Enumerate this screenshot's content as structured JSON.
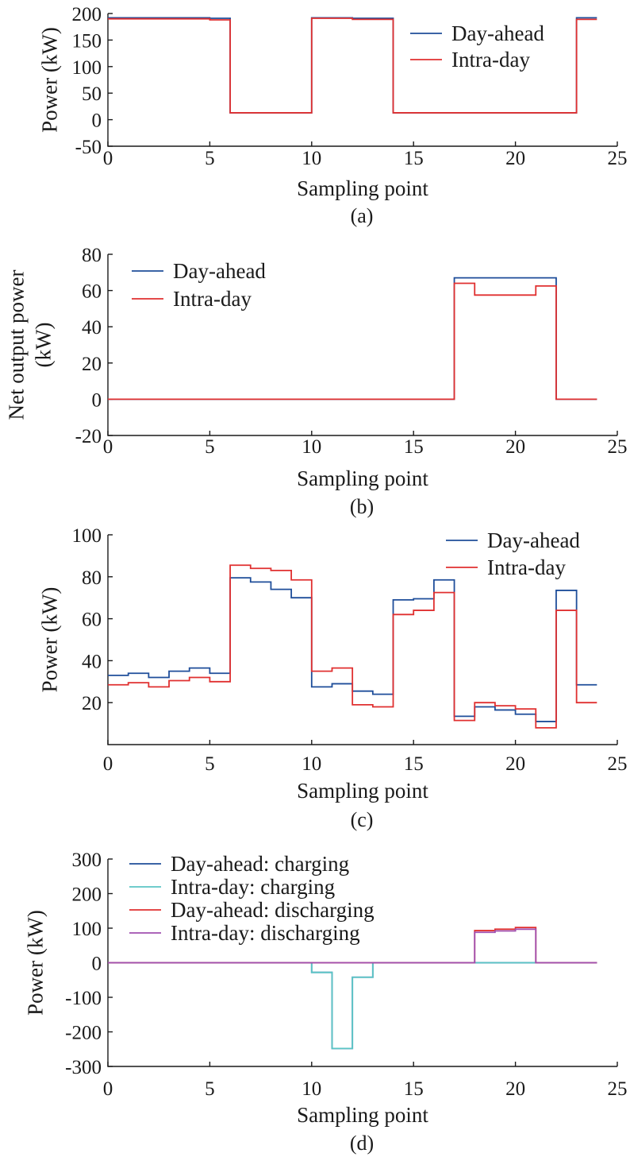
{
  "chart_data": [
    {
      "type": "line",
      "caption": "(a)",
      "xlabel": "Sampling point",
      "ylabel": "Power (kW)",
      "ylabel_lines": [
        "Power (kW)"
      ],
      "xlim": [
        0,
        25
      ],
      "ylim": [
        -50,
        200
      ],
      "xticks": [
        0,
        5,
        10,
        15,
        20,
        25
      ],
      "yticks": [
        -50,
        0,
        50,
        100,
        150,
        200
      ],
      "step": true,
      "legend_position": "top-right",
      "series": [
        {
          "name": "Day-ahead",
          "color": "#1f4e9a",
          "x": [
            0,
            1,
            2,
            3,
            4,
            5,
            6,
            7,
            8,
            9,
            10,
            11,
            12,
            13,
            14,
            15,
            16,
            17,
            18,
            19,
            20,
            21,
            22,
            23
          ],
          "values": [
            192,
            192,
            192,
            192,
            192,
            191,
            13,
            13,
            13,
            13,
            192,
            192,
            191,
            191,
            13,
            13,
            13,
            13,
            13,
            13,
            13,
            13,
            13,
            192
          ]
        },
        {
          "name": "Intra-day",
          "color": "#e03030",
          "x": [
            0,
            1,
            2,
            3,
            4,
            5,
            6,
            7,
            8,
            9,
            10,
            11,
            12,
            13,
            14,
            15,
            16,
            17,
            18,
            19,
            20,
            21,
            22,
            23
          ],
          "values": [
            190,
            190,
            190,
            190,
            190,
            188,
            13,
            13,
            13,
            13,
            191,
            191,
            189,
            189,
            13,
            13,
            13,
            13,
            13,
            13,
            13,
            13,
            13,
            189
          ]
        }
      ]
    },
    {
      "type": "line",
      "caption": "(b)",
      "xlabel": "Sampling point",
      "ylabel": "Net output power (kW)",
      "ylabel_lines": [
        "Net output power",
        "(kW)"
      ],
      "xlim": [
        0,
        25
      ],
      "ylim": [
        -20,
        80
      ],
      "xticks": [
        0,
        5,
        10,
        15,
        20,
        25
      ],
      "yticks": [
        -20,
        0,
        20,
        40,
        60,
        80
      ],
      "step": true,
      "legend_position": "top-left",
      "series": [
        {
          "name": "Day-ahead",
          "color": "#1f4e9a",
          "x": [
            0,
            1,
            2,
            3,
            4,
            5,
            6,
            7,
            8,
            9,
            10,
            11,
            12,
            13,
            14,
            15,
            16,
            17,
            18,
            19,
            20,
            21,
            22,
            23
          ],
          "values": [
            0,
            0,
            0,
            0,
            0,
            0,
            0,
            0,
            0,
            0,
            0,
            0,
            0,
            0,
            0,
            0,
            0,
            67,
            67,
            67,
            67,
            67,
            0,
            0
          ]
        },
        {
          "name": "Intra-day",
          "color": "#e03030",
          "x": [
            0,
            1,
            2,
            3,
            4,
            5,
            6,
            7,
            8,
            9,
            10,
            11,
            12,
            13,
            14,
            15,
            16,
            17,
            18,
            19,
            20,
            21,
            22,
            23
          ],
          "values": [
            0,
            0,
            0,
            0,
            0,
            0,
            0,
            0,
            0,
            0,
            0,
            0,
            0,
            0,
            0,
            0,
            0,
            64,
            57.5,
            57.5,
            57.5,
            62.5,
            0,
            0
          ]
        }
      ]
    },
    {
      "type": "line",
      "caption": "(c)",
      "xlabel": "Sampling point",
      "ylabel": "Power (kW)",
      "ylabel_lines": [
        "Power (kW)"
      ],
      "xlim": [
        0,
        25
      ],
      "ylim": [
        0,
        100
      ],
      "xticks": [
        0,
        5,
        10,
        15,
        20,
        25
      ],
      "yticks": [
        20,
        40,
        60,
        80,
        100
      ],
      "step": true,
      "legend_position": "top-right",
      "series": [
        {
          "name": "Day-ahead",
          "color": "#1f4e9a",
          "x": [
            0,
            1,
            2,
            3,
            4,
            5,
            6,
            7,
            8,
            9,
            10,
            11,
            12,
            13,
            14,
            15,
            16,
            17,
            18,
            19,
            20,
            21,
            22,
            23
          ],
          "values": [
            33,
            34,
            32,
            35,
            36.5,
            34,
            79.5,
            77.5,
            74,
            70,
            27.5,
            29,
            25.5,
            24,
            69,
            69.5,
            78.5,
            13.5,
            18,
            16.5,
            14.5,
            11,
            73.5,
            28.5
          ]
        },
        {
          "name": "Intra-day",
          "color": "#e03030",
          "x": [
            0,
            1,
            2,
            3,
            4,
            5,
            6,
            7,
            8,
            9,
            10,
            11,
            12,
            13,
            14,
            15,
            16,
            17,
            18,
            19,
            20,
            21,
            22,
            23
          ],
          "values": [
            28.5,
            29.5,
            27.5,
            30.5,
            32,
            30,
            85.5,
            84,
            83,
            78.5,
            35,
            36.5,
            19,
            18,
            62,
            64,
            72.5,
            11.5,
            20,
            18.5,
            17,
            8,
            64,
            20
          ]
        }
      ]
    },
    {
      "type": "line",
      "caption": "(d)",
      "xlabel": "Sampling point",
      "ylabel": "Power (kW)",
      "ylabel_lines": [
        "Power (kW)"
      ],
      "xlim": [
        0,
        25
      ],
      "ylim": [
        -300,
        300
      ],
      "xticks": [
        0,
        5,
        10,
        15,
        20,
        25
      ],
      "yticks": [
        -300,
        -200,
        -100,
        0,
        100,
        200,
        300
      ],
      "step": true,
      "legend_position": "top-left",
      "series": [
        {
          "name": "Day-ahead: charging",
          "color": "#1f4e9a",
          "x": [
            0,
            1,
            2,
            3,
            4,
            5,
            6,
            7,
            8,
            9,
            10,
            11,
            12,
            13,
            14,
            15,
            16,
            17,
            18,
            19,
            20,
            21,
            22,
            23
          ],
          "values": [
            0,
            0,
            0,
            0,
            0,
            0,
            0,
            0,
            0,
            0,
            -28,
            -248,
            -42,
            0,
            0,
            0,
            0,
            0,
            0,
            0,
            0,
            0,
            0,
            0
          ]
        },
        {
          "name": "Intra-day: charging",
          "color": "#5bc5c5",
          "x": [
            0,
            1,
            2,
            3,
            4,
            5,
            6,
            7,
            8,
            9,
            10,
            11,
            12,
            13,
            14,
            15,
            16,
            17,
            18,
            19,
            20,
            21,
            22,
            23
          ],
          "values": [
            0,
            0,
            0,
            0,
            0,
            0,
            0,
            0,
            0,
            0,
            -28,
            -248,
            -42,
            0,
            0,
            0,
            0,
            0,
            0,
            0,
            0,
            0,
            0,
            0
          ]
        },
        {
          "name": "Day-ahead: discharging",
          "color": "#e03030",
          "x": [
            0,
            1,
            2,
            3,
            4,
            5,
            6,
            7,
            8,
            9,
            10,
            11,
            12,
            13,
            14,
            15,
            16,
            17,
            18,
            19,
            20,
            21,
            22,
            23
          ],
          "values": [
            0,
            0,
            0,
            0,
            0,
            0,
            0,
            0,
            0,
            0,
            0,
            0,
            0,
            0,
            0,
            0,
            0,
            0,
            93,
            97,
            102,
            0,
            0,
            0
          ]
        },
        {
          "name": "Intra-day: discharging",
          "color": "#a050b0",
          "x": [
            0,
            1,
            2,
            3,
            4,
            5,
            6,
            7,
            8,
            9,
            10,
            11,
            12,
            13,
            14,
            15,
            16,
            17,
            18,
            19,
            20,
            21,
            22,
            23
          ],
          "values": [
            0,
            0,
            0,
            0,
            0,
            0,
            0,
            0,
            0,
            0,
            0,
            0,
            0,
            0,
            0,
            0,
            0,
            0,
            88,
            92,
            97,
            0,
            0,
            0
          ]
        }
      ]
    }
  ]
}
